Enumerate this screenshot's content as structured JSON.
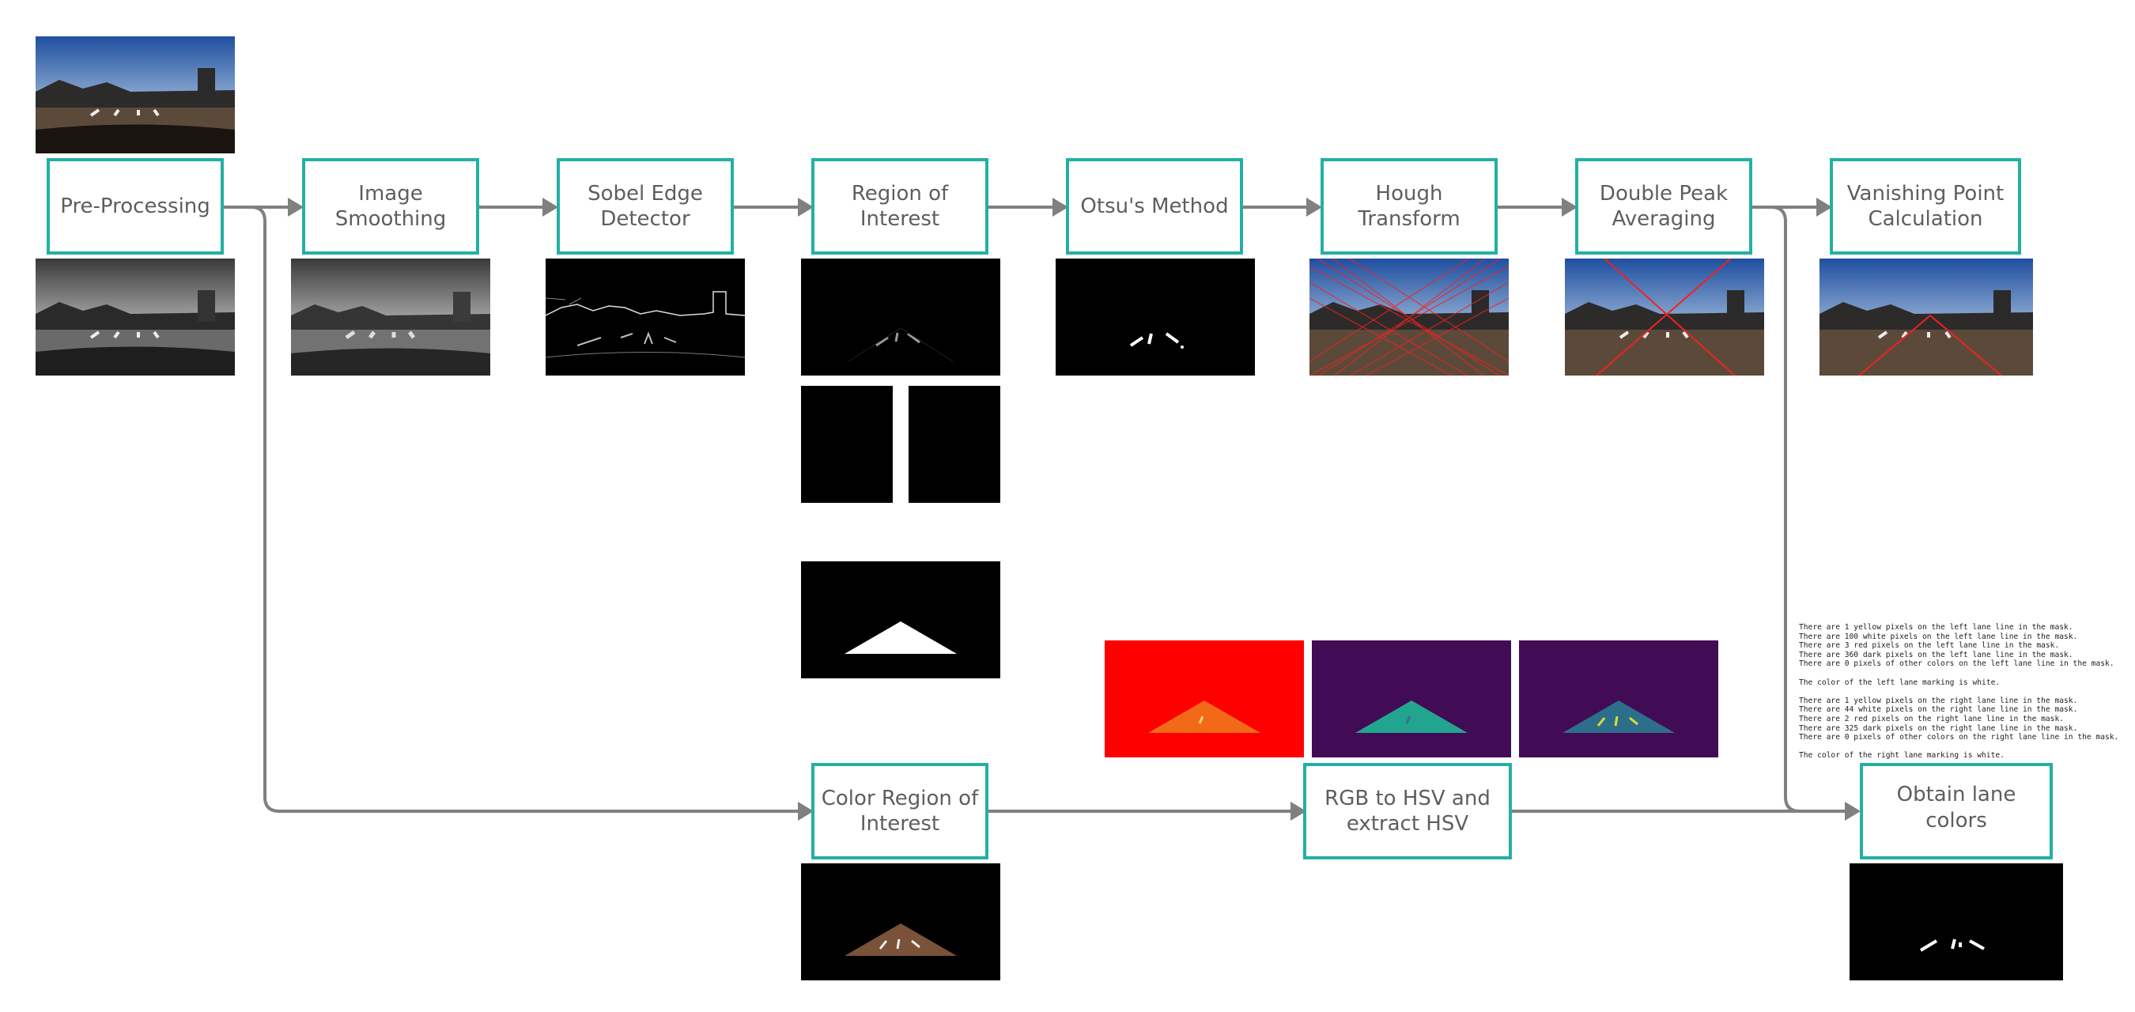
{
  "nodes": {
    "pre_processing": "Pre-Processing",
    "image_smoothing": "Image\nSmoothing",
    "sobel": "Sobel Edge\nDetector",
    "roi": "Region of\nInterest",
    "otsu": "Otsu's Method",
    "hough": "Hough\nTransform",
    "double_peak": "Double Peak\nAveraging",
    "vanishing": "Vanishing Point\nCalculation",
    "color_roi": "Color Region of\nInterest",
    "rgb_hsv": "RGB to HSV and\nextract HSV",
    "lane_colors": "Obtain lane colors"
  },
  "log_lines": [
    "There are 1 yellow pixels on the left lane line in the mask.",
    "There are 100 white pixels on the left lane line in the mask.",
    "There are 3 red pixels on the left lane line in the mask.",
    "There are 360 dark pixels on the left lane line in the mask.",
    "There are 0 pixels of other colors on the left lane line in the mask.",
    "",
    "The color of the left lane marking is white.",
    "",
    "There are 1 yellow pixels on the right lane line in the mask.",
    "There are 44 white pixels on the right lane line in the mask.",
    "There are 2 red pixels on the right lane line in the mask.",
    "There are 325 dark pixels on the right lane line in the mask.",
    "There are 0 pixels of other colors on the right lane line in the mask.",
    "",
    "The color of the right lane marking is white."
  ],
  "colors": {
    "accent": "#23b0a4",
    "arrow": "#808080",
    "text": "#5e5e5e"
  }
}
